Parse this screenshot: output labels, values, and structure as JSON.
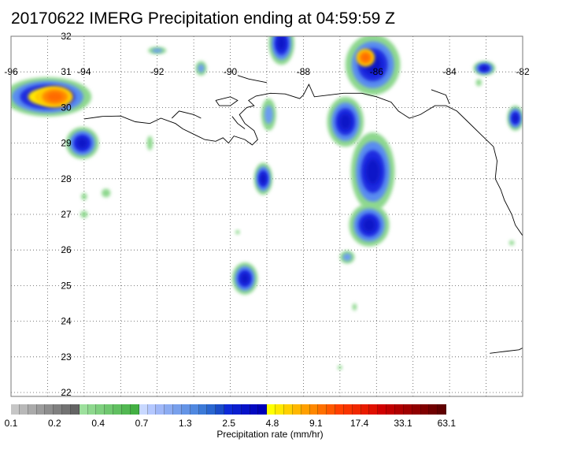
{
  "title": "20170622 IMERG Precipitation ending at 04:59:59 Z",
  "map": {
    "lon_range": [
      -96,
      -82
    ],
    "lat_range": [
      21.5,
      32
    ],
    "lon_ticks": [
      "-96",
      "-94",
      "-92",
      "-90",
      "-88",
      "-86",
      "-84",
      "-82"
    ],
    "lat_ticks": [
      "32",
      "31",
      "30",
      "29",
      "28",
      "27",
      "26",
      "25",
      "24",
      "23",
      "22"
    ],
    "grid": "dotted",
    "coastline_color": "#000000"
  },
  "precip_blobs": [
    {
      "lon": -95.0,
      "lat": 30.3,
      "rx": 1.2,
      "ry": 0.55,
      "level": 4
    },
    {
      "lon": -94.8,
      "lat": 30.3,
      "rx": 0.5,
      "ry": 0.3,
      "level": 5
    },
    {
      "lon": -94.05,
      "lat": 29.0,
      "rx": 0.45,
      "ry": 0.45,
      "level": 3
    },
    {
      "lon": -86.1,
      "lat": 31.2,
      "rx": 0.75,
      "ry": 0.85,
      "level": 3
    },
    {
      "lon": -86.3,
      "lat": 31.4,
      "rx": 0.25,
      "ry": 0.25,
      "level": 5
    },
    {
      "lon": -86.85,
      "lat": 29.6,
      "rx": 0.5,
      "ry": 0.7,
      "level": 3
    },
    {
      "lon": -86.1,
      "lat": 28.2,
      "rx": 0.6,
      "ry": 1.1,
      "level": 3
    },
    {
      "lon": -86.2,
      "lat": 26.7,
      "rx": 0.55,
      "ry": 0.6,
      "level": 3
    },
    {
      "lon": -88.95,
      "lat": 29.8,
      "rx": 0.2,
      "ry": 0.45,
      "level": 2
    },
    {
      "lon": -89.1,
      "lat": 28.0,
      "rx": 0.25,
      "ry": 0.45,
      "level": 3
    },
    {
      "lon": -89.6,
      "lat": 25.2,
      "rx": 0.35,
      "ry": 0.45,
      "level": 3
    },
    {
      "lon": -88.6,
      "lat": 31.8,
      "rx": 0.35,
      "ry": 0.6,
      "level": 3
    },
    {
      "lon": -86.8,
      "lat": 25.8,
      "rx": 0.2,
      "ry": 0.18,
      "level": 2
    },
    {
      "lon": -82.2,
      "lat": 29.7,
      "rx": 0.22,
      "ry": 0.35,
      "level": 3
    },
    {
      "lon": -83.05,
      "lat": 31.1,
      "rx": 0.3,
      "ry": 0.2,
      "level": 3
    },
    {
      "lon": -92.0,
      "lat": 31.6,
      "rx": 0.25,
      "ry": 0.1,
      "level": 2
    },
    {
      "lon": -90.8,
      "lat": 31.1,
      "rx": 0.15,
      "ry": 0.2,
      "level": 2
    },
    {
      "lon": -94.0,
      "lat": 27.0,
      "rx": 0.1,
      "ry": 0.1,
      "level": 1
    },
    {
      "lon": -93.4,
      "lat": 27.6,
      "rx": 0.12,
      "ry": 0.12,
      "level": 1
    },
    {
      "lon": -94.0,
      "lat": 27.5,
      "rx": 0.08,
      "ry": 0.1,
      "level": 1
    },
    {
      "lon": -92.2,
      "lat": 29.0,
      "rx": 0.08,
      "ry": 0.2,
      "level": 1
    },
    {
      "lon": -89.8,
      "lat": 26.5,
      "rx": 0.06,
      "ry": 0.06,
      "level": 1
    },
    {
      "lon": -86.6,
      "lat": 24.4,
      "rx": 0.06,
      "ry": 0.1,
      "level": 1
    },
    {
      "lon": -87.0,
      "lat": 22.7,
      "rx": 0.06,
      "ry": 0.06,
      "level": 1
    },
    {
      "lon": -82.3,
      "lat": 26.2,
      "rx": 0.07,
      "ry": 0.07,
      "level": 1
    },
    {
      "lon": -83.2,
      "lat": 30.7,
      "rx": 0.08,
      "ry": 0.1,
      "level": 1
    }
  ],
  "colorbar": {
    "colors": [
      "#c6c6c6",
      "#b8b8b8",
      "#aaaaaa",
      "#9c9c9c",
      "#8e8e8e",
      "#808080",
      "#727272",
      "#646464",
      "#9de09d",
      "#8ed88e",
      "#7fd07f",
      "#70c870",
      "#61c061",
      "#52b852",
      "#43b043",
      "#c8d8ff",
      "#b4c8ff",
      "#a0b8f8",
      "#8cacf2",
      "#78a0ec",
      "#6494e6",
      "#5088e0",
      "#3c7ad8",
      "#2a66d0",
      "#1a4cc8",
      "#0d2ad8",
      "#0a1ed0",
      "#0612c8",
      "#0308c0",
      "#0000b8",
      "#ffff00",
      "#ffe800",
      "#ffd000",
      "#ffb800",
      "#ffa000",
      "#ff8800",
      "#ff7000",
      "#ff5800",
      "#ff4000",
      "#f83400",
      "#f02800",
      "#e81c00",
      "#e01000",
      "#d00000",
      "#c00000",
      "#b00000",
      "#a00000",
      "#900000",
      "#800000",
      "#700000",
      "#600000"
    ],
    "tick_labels": [
      "0.1",
      "0.2",
      "0.4",
      "0.7",
      "1.3",
      "2.5",
      "4.8",
      "9.1",
      "17.4",
      "33.1",
      "63.1"
    ],
    "title": "Precipitation rate (mm/hr)"
  }
}
